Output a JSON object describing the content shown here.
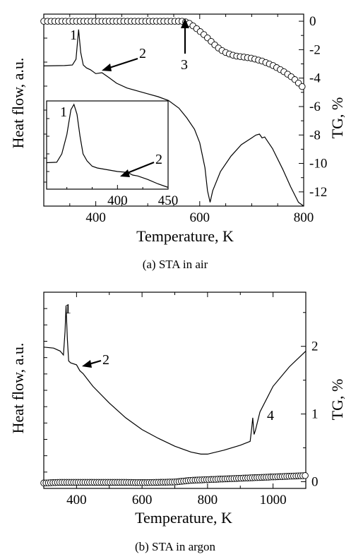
{
  "chart_data": [
    {
      "type": "line",
      "caption": "(a) STA in air",
      "xlabel": "Temperature, K",
      "ylabel_left": "Heat flow, a.u.",
      "ylabel_right": "TG, %",
      "xlim": [
        300,
        800
      ],
      "x_ticks": [
        400,
        600,
        800
      ],
      "tg_ylim": [
        -13,
        0.5
      ],
      "tg_ticks": [
        0,
        -2,
        -4,
        -6,
        -8,
        -10,
        -12
      ],
      "hf_ylim": [
        0,
        100
      ],
      "series": [
        {
          "axis": "left",
          "style": "line",
          "x": [
            300,
            340,
            355,
            362,
            367,
            371,
            376,
            382,
            390,
            400,
            412,
            425,
            440,
            460,
            480,
            500,
            520,
            540,
            560,
            575,
            590,
            600,
            610,
            615,
            620,
            625,
            640,
            660,
            680,
            700,
            708,
            715,
            720,
            725,
            740,
            760,
            775,
            790,
            800
          ],
          "y": [
            73.0,
            73.2,
            73.5,
            76.5,
            92.0,
            80.0,
            73.5,
            72.0,
            71.0,
            69.0,
            69.5,
            67.0,
            64.0,
            61.5,
            60.0,
            58.5,
            57.0,
            55.0,
            51.0,
            46.0,
            40.0,
            33.0,
            20.0,
            8.0,
            2.0,
            8.0,
            18.0,
            26.0,
            32.0,
            35.5,
            37.0,
            37.5,
            35.5,
            36.0,
            30.0,
            19.0,
            10.0,
            2.0,
            0.0
          ]
        },
        {
          "axis": "right",
          "style": "markers",
          "x": [
            300,
            350,
            400,
            450,
            500,
            550,
            570,
            580,
            590,
            600,
            610,
            620,
            630,
            640,
            650,
            660,
            670,
            680,
            690,
            700,
            710,
            720,
            730,
            740,
            750,
            760,
            770,
            780,
            790,
            800
          ],
          "y": [
            0.0,
            0.0,
            0.0,
            0.0,
            0.0,
            0.0,
            0.0,
            -0.15,
            -0.4,
            -0.7,
            -1.0,
            -1.35,
            -1.7,
            -2.0,
            -2.2,
            -2.35,
            -2.45,
            -2.5,
            -2.55,
            -2.6,
            -2.7,
            -2.8,
            -2.95,
            -3.1,
            -3.3,
            -3.5,
            -3.75,
            -4.0,
            -4.35,
            -4.7
          ]
        }
      ],
      "annotations": [
        "1",
        "2",
        "3"
      ],
      "inset": {
        "xlim": [
          330,
          450
        ],
        "x_ticks": [
          400,
          450
        ],
        "hf_ylim": [
          0,
          100
        ],
        "annotations": [
          "1",
          "2"
        ],
        "series": [
          {
            "axis": "left",
            "style": "line",
            "x": [
              330,
              340,
              345,
              350,
              354,
              357,
              360,
              363,
              366,
              370,
              375,
              380,
              390,
              400,
              410,
              415,
              420,
              430,
              440,
              450
            ],
            "y": [
              30.0,
              30.5,
              40.0,
              62.0,
              90.0,
              96.0,
              85.0,
              60.0,
              40.0,
              32.0,
              26.0,
              24.0,
              22.0,
              20.0,
              19.0,
              16.0,
              15.0,
              11.0,
              6.0,
              2.0
            ]
          }
        ]
      }
    },
    {
      "type": "line",
      "caption": "(b) STA in argon",
      "xlabel": "Temperature, K",
      "ylabel_left": "Heat flow, a.u.",
      "ylabel_right": "TG, %",
      "xlim": [
        300,
        1100
      ],
      "x_ticks": [
        400,
        600,
        800,
        1000
      ],
      "tg_ylim": [
        -0.1,
        2.8
      ],
      "tg_ticks": [
        0,
        1,
        2
      ],
      "hf_ylim": [
        0,
        100
      ],
      "series": [
        {
          "axis": "left",
          "style": "line",
          "x": [
            300,
            330,
            350,
            360,
            365,
            368,
            372,
            376,
            382,
            400,
            410,
            420,
            450,
            500,
            550,
            600,
            650,
            700,
            750,
            780,
            800,
            850,
            900,
            930,
            935,
            938,
            942,
            946,
            960,
            1000,
            1050,
            1100
          ],
          "y": [
            72.0,
            71.5,
            70.0,
            68.0,
            80.0,
            93.0,
            76.0,
            65.0,
            64.0,
            63.0,
            60.0,
            58.5,
            52.0,
            43.5,
            36.0,
            30.0,
            25.5,
            21.5,
            18.5,
            17.5,
            17.5,
            19.5,
            22.0,
            24.0,
            31.0,
            36.0,
            27.5,
            29.5,
            39.0,
            52.0,
            62.0,
            70.0
          ]
        },
        {
          "axis": "right",
          "style": "markers",
          "x": [
            300,
            350,
            400,
            450,
            500,
            550,
            600,
            650,
            700,
            750,
            800,
            850,
            900,
            950,
            1000,
            1050,
            1100
          ],
          "y": [
            -0.02,
            -0.01,
            -0.01,
            -0.01,
            -0.01,
            -0.01,
            -0.015,
            -0.01,
            -0.005,
            0.02,
            0.03,
            0.04,
            0.05,
            0.06,
            0.07,
            0.08,
            0.09
          ]
        }
      ],
      "annotations": [
        "1",
        "2",
        "4"
      ]
    }
  ]
}
